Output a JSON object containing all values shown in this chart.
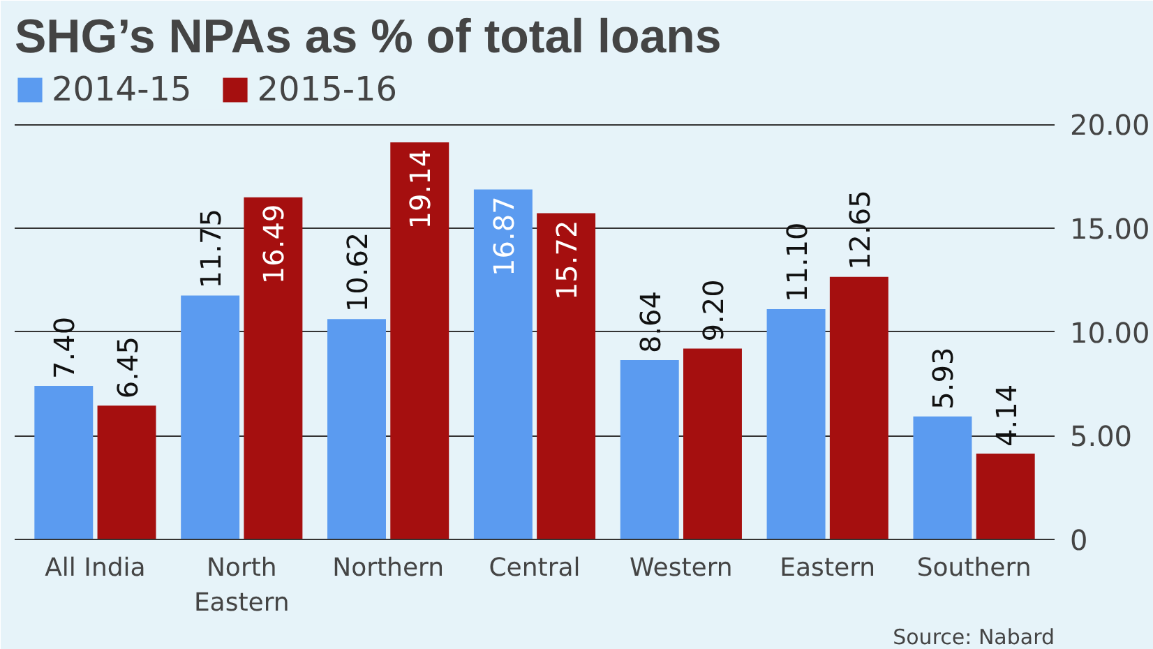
{
  "chart_data": {
    "type": "bar",
    "title": "SHG’s NPAs as % of total loans",
    "categories": [
      "All India",
      "North Eastern",
      "Northern",
      "Central",
      "Western",
      "Eastern",
      "Southern"
    ],
    "series": [
      {
        "name": "2014-15",
        "color": "#5b9bf0",
        "values": [
          7.4,
          11.75,
          10.62,
          16.87,
          8.64,
          11.1,
          5.93
        ],
        "value_labels": [
          "7.40",
          "11.75",
          "10.62",
          "16.87",
          "8.64",
          "11.10",
          "5.93"
        ]
      },
      {
        "name": "2015-16",
        "color": "#a50f0f",
        "values": [
          6.45,
          16.49,
          19.14,
          15.72,
          9.2,
          12.65,
          4.14
        ],
        "value_labels": [
          "6.45",
          "16.49",
          "19.14",
          "15.72",
          "9.20",
          "12.65",
          "4.14"
        ]
      }
    ],
    "ylim": [
      0,
      22.6
    ],
    "yticks": [
      0,
      {
        "value": 5,
        "label": "5.00"
      },
      {
        "value": 10,
        "label": "10.00"
      },
      {
        "value": 15,
        "label": "15.00"
      },
      {
        "value": 20,
        "label": "20.00"
      }
    ],
    "grid": "y",
    "legend": "top left",
    "annotations": [
      "Source: Nabard"
    ]
  }
}
